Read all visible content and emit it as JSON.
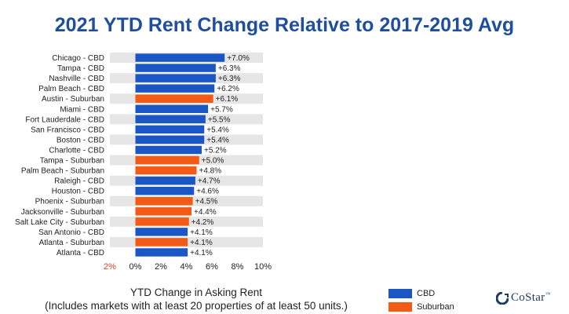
{
  "title": "2021 YTD Rent Change Relative to 2017-2019 Avg",
  "xcaption_line1": "YTD Change in Asking Rent",
  "xcaption_line2": "(Includes markets with at least 20 properties of at least 50 units.)",
  "legend": [
    {
      "label": "CBD",
      "color": "#1a56c4"
    },
    {
      "label": "Suburban",
      "color": "#f25a16"
    }
  ],
  "logo_text": "CoStar",
  "logo_tm": "™",
  "chart_data": {
    "type": "bar",
    "orientation": "horizontal",
    "xlim": [
      -2,
      10
    ],
    "xticks": [
      "2%",
      "0%",
      "2%",
      "4%",
      "6%",
      "8%",
      "10%"
    ],
    "xtick_values": [
      -2,
      0,
      2,
      4,
      6,
      8,
      10
    ],
    "negative_tick_color": "#e03b2a",
    "series": [
      {
        "name": "CBD",
        "color": "#1a56c4"
      },
      {
        "name": "Suburban",
        "color": "#f25a16"
      }
    ],
    "bars": [
      {
        "category": "Chicago - CBD",
        "value": 7.0,
        "label": "+7.0%",
        "series": "CBD"
      },
      {
        "category": "Tampa - CBD",
        "value": 6.3,
        "label": "+6.3%",
        "series": "CBD"
      },
      {
        "category": "Nashville - CBD",
        "value": 6.3,
        "label": "+6.3%",
        "series": "CBD"
      },
      {
        "category": "Palm Beach - CBD",
        "value": 6.2,
        "label": "+6.2%",
        "series": "CBD"
      },
      {
        "category": "Austin - Suburban",
        "value": 6.1,
        "label": "+6.1%",
        "series": "Suburban"
      },
      {
        "category": "Miami - CBD",
        "value": 5.7,
        "label": "+5.7%",
        "series": "CBD"
      },
      {
        "category": "Fort Lauderdale - CBD",
        "value": 5.5,
        "label": "+5.5%",
        "series": "CBD"
      },
      {
        "category": "San Francisco - CBD",
        "value": 5.4,
        "label": "+5.4%",
        "series": "CBD"
      },
      {
        "category": "Boston - CBD",
        "value": 5.4,
        "label": "+5.4%",
        "series": "CBD"
      },
      {
        "category": "Charlotte - CBD",
        "value": 5.2,
        "label": "+5.2%",
        "series": "CBD"
      },
      {
        "category": "Tampa - Suburban",
        "value": 5.0,
        "label": "+5.0%",
        "series": "Suburban"
      },
      {
        "category": "Palm Beach - Suburban",
        "value": 4.8,
        "label": "+4.8%",
        "series": "Suburban"
      },
      {
        "category": "Raleigh - CBD",
        "value": 4.7,
        "label": "+4.7%",
        "series": "CBD"
      },
      {
        "category": "Houston - CBD",
        "value": 4.6,
        "label": "+4.6%",
        "series": "CBD"
      },
      {
        "category": "Phoenix - Suburban",
        "value": 4.5,
        "label": "+4.5%",
        "series": "Suburban"
      },
      {
        "category": "Jacksonville - Suburban",
        "value": 4.4,
        "label": "+4.4%",
        "series": "Suburban"
      },
      {
        "category": "Salt Lake City - Suburban",
        "value": 4.2,
        "label": "+4.2%",
        "series": "Suburban"
      },
      {
        "category": "San Antonio - CBD",
        "value": 4.1,
        "label": "+4.1%",
        "series": "CBD"
      },
      {
        "category": "Atlanta - Suburban",
        "value": 4.1,
        "label": "+4.1%",
        "series": "Suburban"
      },
      {
        "category": "Atlanta - CBD",
        "value": 4.1,
        "label": "+4.1%",
        "series": "CBD"
      }
    ]
  }
}
